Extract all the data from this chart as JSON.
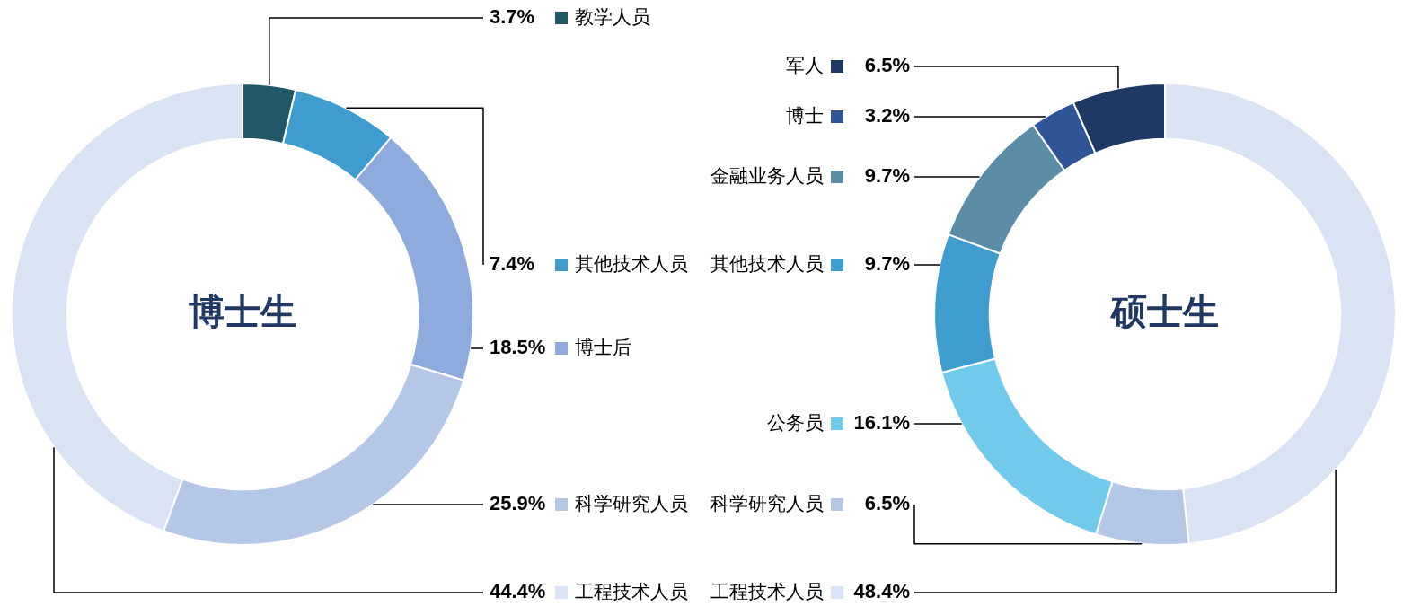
{
  "chart_data": [
    {
      "type": "donut",
      "title": "博士生",
      "categories": [
        "教学人员",
        "其他技术人员",
        "博士后",
        "科学研究人员",
        "工程技术人员"
      ],
      "values": [
        3.7,
        7.4,
        18.5,
        25.9,
        44.4
      ],
      "value_labels": [
        "3.7%",
        "7.4%",
        "18.5%",
        "25.9%",
        "44.4%"
      ],
      "colors": [
        "#215868",
        "#3e9ccf",
        "#8faadc",
        "#b4c7e7",
        "#dae3f3"
      ],
      "legend": "right"
    },
    {
      "type": "donut",
      "title": "硕士生",
      "categories": [
        "工程技术人员",
        "科学研究人员",
        "公务员",
        "其他技术人员",
        "金融业务人员",
        "博士",
        "军人"
      ],
      "values": [
        48.4,
        6.5,
        16.1,
        9.7,
        9.7,
        3.2,
        6.5
      ],
      "value_labels": [
        "48.4%",
        "6.5%",
        "16.1%",
        "9.7%",
        "9.7%",
        "3.2%",
        "6.5%"
      ],
      "colors": [
        "#dae3f3",
        "#b4c7e7",
        "#71c9ec",
        "#3e9ccf",
        "#5b8ea6",
        "#2f5597",
        "#203864"
      ],
      "legend": "left"
    }
  ]
}
